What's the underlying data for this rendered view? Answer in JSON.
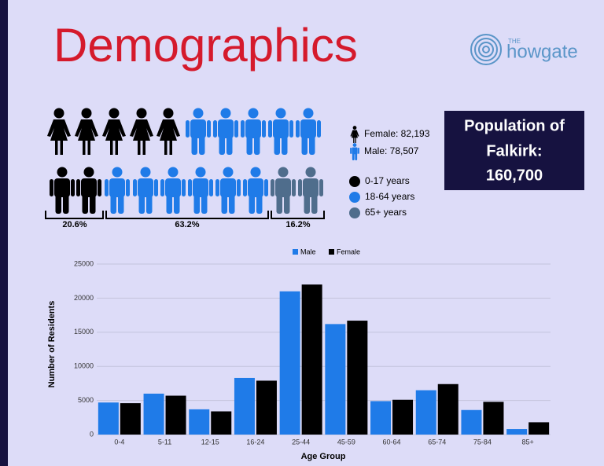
{
  "header": {
    "title": "Demographics",
    "logo_small": "THE",
    "logo": "howgate"
  },
  "infographic": {
    "gender_legend": [
      "Female: 82,193",
      "Male: 78,507"
    ],
    "age_legend": [
      "0-17 years",
      "18-64 years",
      "65+ years"
    ],
    "shares": [
      "20.6%",
      "63.2%",
      "16.2%"
    ],
    "population_box": [
      "Population of",
      "Falkirk:",
      "160,700"
    ]
  },
  "chart_data": {
    "type": "bar",
    "x_label": "Age Group",
    "y_label": "Number of Residents",
    "categories": [
      "0-4",
      "5-11",
      "12-15",
      "16-24",
      "25-44",
      "45-59",
      "60-64",
      "65-74",
      "75-84",
      "85+"
    ],
    "series": [
      {
        "name": "Male",
        "color": "#1f7be8",
        "values": [
          4700,
          6000,
          3700,
          8300,
          21000,
          16200,
          4900,
          6500,
          3600,
          800
        ]
      },
      {
        "name": "Female",
        "color": "#000000",
        "values": [
          4600,
          5700,
          3400,
          7900,
          22000,
          16700,
          5100,
          7400,
          4800,
          1800
        ]
      }
    ],
    "ylim": [
      0,
      25000
    ],
    "yticks": [
      0,
      5000,
      10000,
      15000,
      20000,
      25000
    ],
    "grid": true
  }
}
